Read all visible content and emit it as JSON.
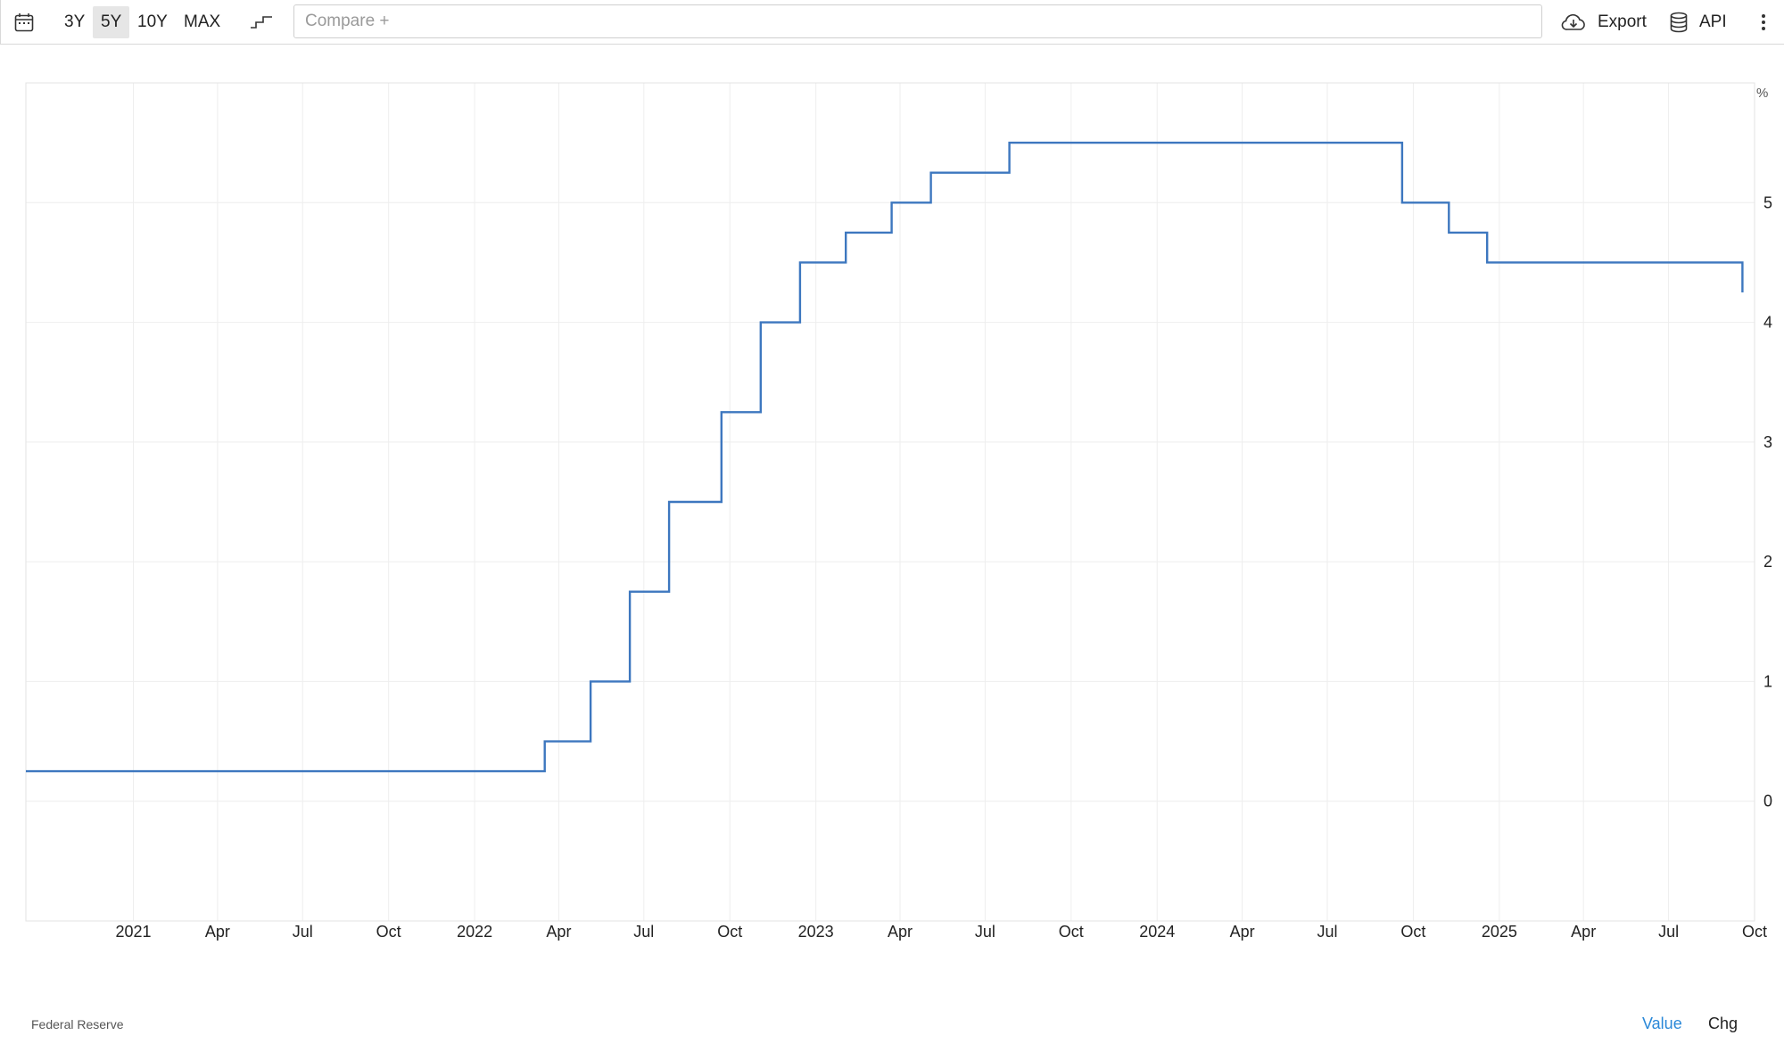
{
  "toolbar": {
    "ranges": [
      "3Y",
      "5Y",
      "10Y",
      "MAX"
    ],
    "active_range": "5Y",
    "compare_placeholder": "Compare +",
    "export_label": "Export",
    "api_label": "API",
    "icons": [
      "calendar-icon",
      "step-line-icon",
      "cloud-download-icon",
      "database-icon",
      "more-vertical-icon"
    ]
  },
  "chart_data": {
    "type": "line",
    "line_style": "step",
    "unit_label": "%",
    "color": "#3d77bf",
    "x_ticks": [
      "2021",
      "Apr",
      "Jul",
      "Oct",
      "2022",
      "Apr",
      "Jul",
      "Oct",
      "2023",
      "Apr",
      "Jul",
      "Oct",
      "2024",
      "Apr",
      "Jul",
      "Oct",
      "2025",
      "Apr",
      "Jul",
      "Oct"
    ],
    "y_ticks": [
      "0",
      "1",
      "2",
      "3",
      "4",
      "5"
    ],
    "xlim": [
      "2020-09-08",
      "2025-10-01"
    ],
    "ylim": [
      -1,
      6
    ],
    "grid": true,
    "series": [
      {
        "points": [
          [
            "2020-09-08",
            0.25
          ],
          [
            "2022-03-17",
            0.5
          ],
          [
            "2022-05-05",
            1.0
          ],
          [
            "2022-06-16",
            1.75
          ],
          [
            "2022-07-28",
            2.5
          ],
          [
            "2022-09-22",
            3.25
          ],
          [
            "2022-11-03",
            4.0
          ],
          [
            "2022-12-15",
            4.5
          ],
          [
            "2023-02-02",
            4.75
          ],
          [
            "2023-03-23",
            5.0
          ],
          [
            "2023-05-04",
            5.25
          ],
          [
            "2023-07-27",
            5.5
          ],
          [
            "2024-09-19",
            5.0
          ],
          [
            "2024-11-08",
            4.75
          ],
          [
            "2024-12-19",
            4.5
          ],
          [
            "2025-09-18",
            4.25
          ]
        ]
      }
    ]
  },
  "footer": {
    "source": "Federal Reserve",
    "value_label": "Value",
    "chg_label": "Chg"
  }
}
